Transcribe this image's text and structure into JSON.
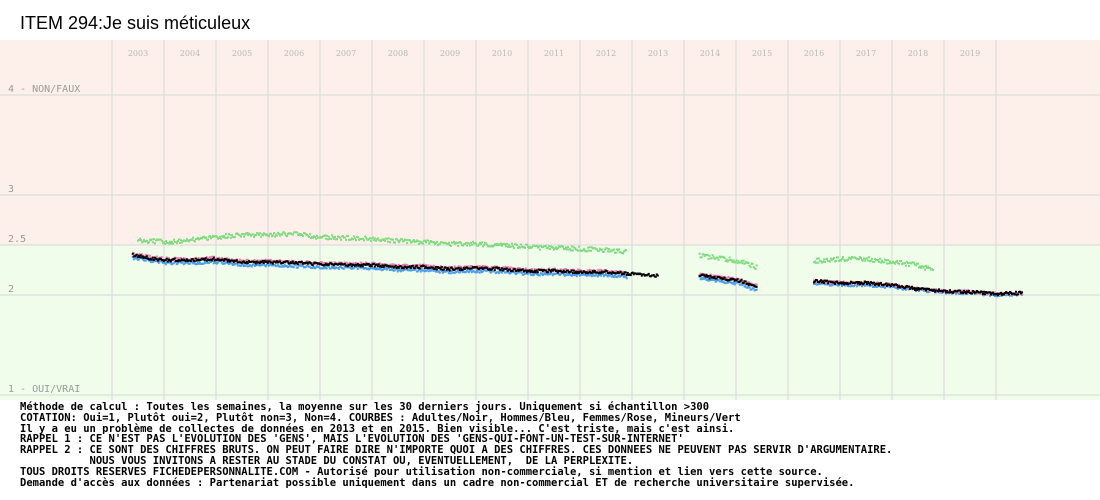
{
  "title": "ITEM 294:Je suis méticuleux",
  "chart_data": {
    "type": "scatter",
    "title": "ITEM 294:Je suis méticuleux",
    "x_tick_labels": [
      "2003",
      "2004",
      "2005",
      "2006",
      "2007",
      "2008",
      "2009",
      "2010",
      "2011",
      "2012",
      "2013",
      "2014",
      "2015",
      "2016",
      "2017",
      "2018",
      "2019"
    ],
    "y_tick_labels": [
      {
        "value": 4,
        "label": "4 - NON/FAUX"
      },
      {
        "value": 3,
        "label": "3"
      },
      {
        "value": 2.5,
        "label": "2.5"
      },
      {
        "value": 2,
        "label": "2"
      },
      {
        "value": 1,
        "label": "1 - OUI/VRAI"
      }
    ],
    "ylim": [
      1,
      4
    ],
    "xlim": [
      2002.5,
      2020.5
    ],
    "grid": true,
    "background_colors": {
      "above_2_5": "#fdf0ea",
      "below_2_5": "#effdea"
    },
    "gaps": [
      [
        2013.0,
        2013.75
      ],
      [
        2014.95,
        2015.95
      ]
    ],
    "series": [
      {
        "name": "Adultes",
        "color": "#000000",
        "segments": [
          {
            "x": [
              2002.9,
              2003.2,
              2003.5,
              2004.0,
              2004.5,
              2005.0,
              2005.5,
              2006.0,
              2006.5,
              2007.0,
              2007.5,
              2008.0,
              2008.5,
              2009.0,
              2009.5,
              2010.0,
              2010.5,
              2011.0,
              2011.5,
              2012.0,
              2012.5,
              2013.0
            ],
            "y": [
              2.4,
              2.37,
              2.35,
              2.35,
              2.36,
              2.33,
              2.33,
              2.32,
              2.31,
              2.3,
              2.3,
              2.28,
              2.28,
              2.26,
              2.27,
              2.26,
              2.24,
              2.24,
              2.23,
              2.23,
              2.21,
              2.19
            ]
          },
          {
            "x": [
              2013.8,
              2014.0,
              2014.3,
              2014.6,
              2014.9
            ],
            "y": [
              2.2,
              2.18,
              2.16,
              2.14,
              2.08
            ]
          },
          {
            "x": [
              2016.0,
              2016.5,
              2017.0,
              2017.5,
              2018.0,
              2018.5,
              2019.0,
              2019.5,
              2020.0
            ],
            "y": [
              2.14,
              2.12,
              2.12,
              2.1,
              2.06,
              2.04,
              2.03,
              2.01,
              2.02
            ]
          }
        ]
      },
      {
        "name": "Hommes",
        "color": "#4a9ef0",
        "segments": [
          {
            "x": [
              2002.9,
              2003.5,
              2004.0,
              2004.5,
              2005.0,
              2005.5,
              2006.0,
              2006.5,
              2007.0,
              2007.5,
              2008.0,
              2008.5,
              2009.0,
              2009.5,
              2010.0,
              2010.5,
              2011.0,
              2011.5,
              2012.0,
              2012.4
            ],
            "y": [
              2.37,
              2.32,
              2.32,
              2.33,
              2.3,
              2.3,
              2.29,
              2.28,
              2.27,
              2.27,
              2.25,
              2.25,
              2.23,
              2.24,
              2.23,
              2.21,
              2.21,
              2.2,
              2.2,
              2.18
            ]
          },
          {
            "x": [
              2013.8,
              2014.0,
              2014.3,
              2014.6,
              2014.9
            ],
            "y": [
              2.17,
              2.15,
              2.13,
              2.11,
              2.04
            ]
          },
          {
            "x": [
              2016.0,
              2016.5,
              2017.0,
              2017.5,
              2018.0,
              2018.5,
              2019.0,
              2019.5,
              2020.0
            ],
            "y": [
              2.12,
              2.1,
              2.1,
              2.08,
              2.05,
              2.03,
              2.02,
              2.0,
              2.01
            ]
          }
        ]
      },
      {
        "name": "Femmes",
        "color": "#f07ab0",
        "segments": [
          {
            "x": [
              2002.9,
              2003.5,
              2004.0,
              2004.5,
              2005.0,
              2005.5,
              2006.0,
              2006.5,
              2007.0,
              2007.5,
              2008.0,
              2008.5,
              2009.0,
              2009.5,
              2010.0,
              2010.5,
              2011.0,
              2011.5,
              2012.0,
              2012.4
            ],
            "y": [
              2.41,
              2.36,
              2.36,
              2.37,
              2.34,
              2.34,
              2.33,
              2.32,
              2.31,
              2.31,
              2.29,
              2.29,
              2.27,
              2.28,
              2.27,
              2.25,
              2.25,
              2.24,
              2.24,
              2.22
            ]
          },
          {
            "x": [
              2013.8,
              2014.0,
              2014.3,
              2014.6,
              2014.9
            ],
            "y": [
              2.21,
              2.19,
              2.17,
              2.15,
              2.09
            ]
          },
          {
            "x": [
              2016.0,
              2016.5,
              2017.0,
              2017.5,
              2018.0,
              2018.5,
              2019.0,
              2019.5,
              2020.0
            ],
            "y": [
              2.14,
              2.12,
              2.12,
              2.1,
              2.06,
              2.04,
              2.03,
              2.01,
              2.02
            ]
          }
        ]
      },
      {
        "name": "Mineurs",
        "color": "#80dd80",
        "segments": [
          {
            "x": [
              2003.0,
              2003.5,
              2004.0,
              2004.5,
              2005.0,
              2005.5,
              2006.0,
              2006.5,
              2007.0,
              2007.5,
              2008.0,
              2008.5,
              2009.0,
              2009.5,
              2010.0,
              2010.5,
              2011.0,
              2011.5,
              2012.0,
              2012.4
            ],
            "y": [
              2.55,
              2.53,
              2.55,
              2.58,
              2.6,
              2.6,
              2.61,
              2.58,
              2.57,
              2.56,
              2.54,
              2.53,
              2.51,
              2.51,
              2.5,
              2.48,
              2.47,
              2.46,
              2.45,
              2.43
            ]
          },
          {
            "x": [
              2013.8,
              2014.0,
              2014.3,
              2014.6,
              2014.9
            ],
            "y": [
              2.4,
              2.38,
              2.36,
              2.33,
              2.28
            ]
          },
          {
            "x": [
              2016.0,
              2016.5,
              2017.0,
              2017.5,
              2018.0,
              2018.3
            ],
            "y": [
              2.34,
              2.36,
              2.36,
              2.33,
              2.3,
              2.24
            ]
          }
        ]
      }
    ]
  },
  "notes": [
    "Méthode de calcul : Toutes les semaines, la moyenne sur les 30 derniers jours. Uniquement si échantillon >300",
    "COTATION: Oui=1, Plutôt oui=2, Plutôt non=3, Non=4. COURBES : Adultes/Noir, Hommes/Bleu, Femmes/Rose, Mineurs/Vert",
    "Il y a eu un problème de collectes de données en 2013 et en 2015. Bien visible... C'est triste, mais c'est ainsi.",
    "RAPPEL 1 : CE N'EST PAS L'EVOLUTION DES 'GENS', MAIS L'EVOLUTION DES 'GENS-QUI-FONT-UN-TEST-SUR-INTERNET'",
    "RAPPEL 2 : CE SONT DES CHIFFRES BRUTS. ON PEUT FAIRE DIRE N'IMPORTE QUOI A DES CHIFFRES. CES DONNEES NE PEUVENT PAS SERVIR D'ARGUMENTAIRE.",
    "           NOUS VOUS INVITONS A RESTER AU STADE DU CONSTAT OU, EVENTUELLEMENT,  DE LA PERPLEXITE.",
    "TOUS DROITS RESERVES FICHEDEPERSONNALITE.COM - Autorisé pour utilisation non-commerciale, si mention et lien vers cette source.",
    "Demande d'accès aux données : Partenariat possible uniquement dans un cadre non-commercial ET de recherche universitaire supervisée."
  ]
}
